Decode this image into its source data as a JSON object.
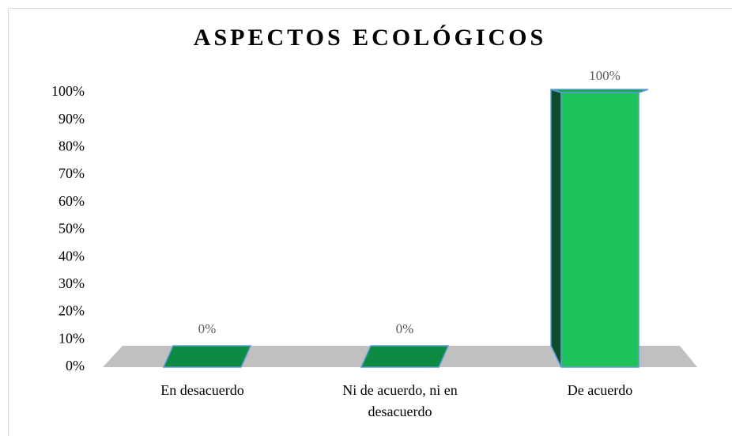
{
  "chart_data": {
    "type": "bar3d",
    "title": "ASPECTOS ECOLÓGICOS",
    "categories": [
      "En desacuerdo",
      "Ni de acuerdo, ni en desacuerdo",
      "De acuerdo"
    ],
    "values": [
      0,
      0,
      100
    ],
    "value_labels": [
      "0%",
      "0%",
      "100%"
    ],
    "color": "#1fc15b",
    "ylim": [
      0,
      100
    ],
    "yticks": [
      {
        "value": 0,
        "label": "0%"
      },
      {
        "value": 10,
        "label": "10%"
      },
      {
        "value": 20,
        "label": "20%"
      },
      {
        "value": 30,
        "label": "30%"
      },
      {
        "value": 40,
        "label": "40%"
      },
      {
        "value": 50,
        "label": "50%"
      },
      {
        "value": 60,
        "label": "60%"
      },
      {
        "value": 70,
        "label": "70%"
      },
      {
        "value": 80,
        "label": "80%"
      },
      {
        "value": 90,
        "label": "90%"
      },
      {
        "value": 100,
        "label": "100%"
      }
    ],
    "grid": false
  }
}
